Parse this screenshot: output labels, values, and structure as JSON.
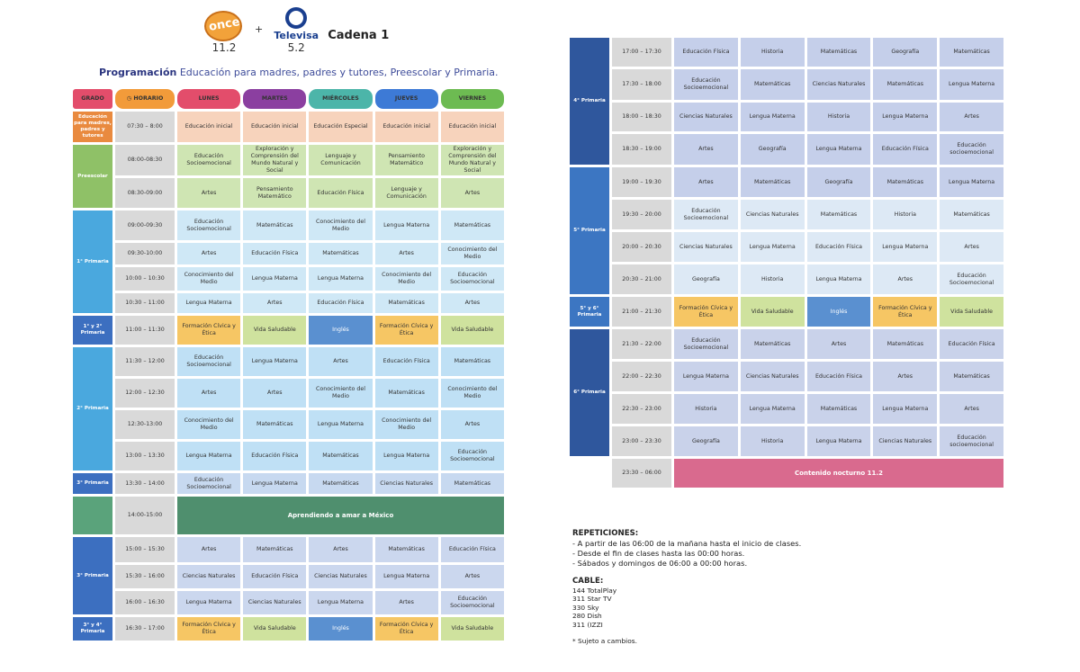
{
  "header": {
    "channel_once_logo": "once",
    "channel_once_number": "11.2",
    "plus": "+",
    "televisa_logo": "Televisa",
    "televisa_number": "5.2",
    "cadena": "Cadena 1",
    "subtitle_bold": "Programación",
    "subtitle_rest": " Educación para madres, padres y tutores, Preescolar y Primaria."
  },
  "colors": {
    "lunes": "#e34d6b",
    "martes": "#8b3fa0",
    "miercoles": "#4cb5a9",
    "jueves": "#3d7ad6",
    "viernes": "#6dbb52",
    "grado": "#e34d6b",
    "horario": "#f29b3a"
  },
  "table_header": {
    "grado": "GRADO",
    "horario": "HORARIO",
    "lunes": "LUNES",
    "martes": "MARTES",
    "miercoles": "MIÉRCOLES",
    "jueves": "JUEVES",
    "viernes": "VIERNES"
  },
  "left_rows": [
    {
      "grade": "Educación para madres, padres y tutores",
      "span": 1,
      "gcolor": "#e98a3f",
      "time": "07:30 – 8:00",
      "cls": "c-inicial",
      "cells": [
        "Educación inicial",
        "Educación inicial",
        "Educación Especial",
        "Educación inicial",
        "Educación inicial"
      ],
      "h": 34
    },
    {
      "grade": "Preescolar",
      "span": 2,
      "gcolor": "#8fc167",
      "time": "08:00-08:30",
      "cls": "c-presc",
      "cells": [
        "Educación Socioemocional",
        "Exploración y Comprensión del Mundo Natural y Social",
        "Lenguaje y Comunicación",
        "Pensamiento Matemático",
        "Exploración y Comprensión del Mundo Natural y Social"
      ],
      "h": 34
    },
    {
      "grade": null,
      "time": "08:30-09:00",
      "cls": "c-presc",
      "cells": [
        "Artes",
        "Pensamiento Matemático",
        "Educación Física",
        "Lenguaje y Comunicación",
        "Artes"
      ],
      "h": 33
    },
    {
      "grade": "1° Primaria",
      "span": 4,
      "gcolor": "#4aa8de",
      "time": "09:00-09:30",
      "cls": "c-1",
      "cells": [
        "Educación Socioemocional",
        "Matemáticas",
        "Conocimiento del Medio",
        "Lengua Materna",
        "Matemáticas"
      ],
      "h": 33
    },
    {
      "grade": null,
      "time": "09:30-10:00",
      "cls": "c-1",
      "cells": [
        "Artes",
        "Educación Física",
        "Matemáticas",
        "Artes",
        "Conocimiento del Medio"
      ],
      "h": 24
    },
    {
      "grade": null,
      "time": "10:00 – 10:30",
      "cls": "c-1",
      "cells": [
        "Conocimiento del Medio",
        "Lengua Materna",
        "Lengua Materna",
        "Conocimiento del Medio",
        "Educación Socioemocional"
      ],
      "h": 26
    },
    {
      "grade": null,
      "time": "10:30 – 11:00",
      "cls": "c-1",
      "cells": [
        "Lengua Materna",
        "Artes",
        "Educación Física",
        "Matemáticas",
        "Artes"
      ],
      "h": 22
    },
    {
      "grade": "1° y 2° Primaria",
      "span": 1,
      "gcolor": "#3c6fc0",
      "time": "11:00 – 11:30",
      "cls": "",
      "cells": [
        "Formación Cívica y Ética",
        "Vida Saludable",
        "Inglés",
        "Formación Cívica y Ética",
        "Vida Saludable"
      ],
      "ccls": [
        "c-fce",
        "c-vs",
        "c-ing",
        "c-fce",
        "c-vs"
      ],
      "h": 32
    },
    {
      "grade": "2° Primaria",
      "span": 4,
      "gcolor": "#4aa8de",
      "time": "11:30 – 12:00",
      "cls": "c-2",
      "cells": [
        "Educación Socioemocional",
        "Lengua Materna",
        "Artes",
        "Educación Física",
        "Matemáticas"
      ],
      "h": 32
    },
    {
      "grade": null,
      "time": "12:00 – 12:30",
      "cls": "c-2",
      "cells": [
        "Artes",
        "Artes",
        "Conocimiento del Medio",
        "Matemáticas",
        "Conocimiento del Medio"
      ],
      "h": 32
    },
    {
      "grade": null,
      "time": "12:30-13:00",
      "cls": "c-2",
      "cells": [
        "Conocimiento del Medio",
        "Matemáticas",
        "Lengua Materna",
        "Conocimiento del Medio",
        "Artes"
      ],
      "h": 32
    },
    {
      "grade": null,
      "time": "13:00 – 13:30",
      "cls": "c-2",
      "cells": [
        "Lengua Materna",
        "Educación Física",
        "Matemáticas",
        "Lengua Materna",
        "Educación Socioemocional"
      ],
      "h": 32
    },
    {
      "grade": "3° Primaria",
      "span": 1,
      "gcolor": "#3c6fc0",
      "time": "13:30 – 14:00",
      "cls": "c-3b",
      "cells": [
        "Educación Socioemocional",
        "Lengua Materna",
        "Matemáticas",
        "Ciencias Naturales",
        "Matemáticas"
      ],
      "h": 23
    },
    {
      "grade": "",
      "span": 1,
      "gcolor": "#5aa37b",
      "time": "14:00-15:00",
      "cls": "",
      "special": "Aprendiendo a amar a México",
      "h": 42
    },
    {
      "grade": "3° Primaria",
      "span": 3,
      "gcolor": "#3c6fc0",
      "time": "15:00 – 15:30",
      "cls": "c-3",
      "cells": [
        "Artes",
        "Matemáticas",
        "Artes",
        "Matemáticas",
        "Educación Física"
      ],
      "h": 28
    },
    {
      "grade": null,
      "time": "15:30 – 16:00",
      "cls": "c-3",
      "cells": [
        "Ciencias Naturales",
        "Educación Física",
        "Ciencias Naturales",
        "Lengua Materna",
        "Artes"
      ],
      "h": 26
    },
    {
      "grade": null,
      "time": "16:00 – 16:30",
      "cls": "c-3",
      "cells": [
        "Lengua Materna",
        "Ciencias Naturales",
        "Lengua Materna",
        "Artes",
        "Educación Socioemocional"
      ],
      "h": 26
    },
    {
      "grade": "3° y 4° Primaria",
      "span": 1,
      "gcolor": "#3c6fc0",
      "time": "16:30 – 17:00",
      "cls": "",
      "cells": [
        "Formación Cívica y Ética",
        "Vida Saludable",
        "Inglés",
        "Formación Cívica y Ética",
        "Vida Saludable"
      ],
      "ccls": [
        "c-fce",
        "c-vs",
        "c-ing",
        "c-fce",
        "c-vs"
      ],
      "h": 26
    }
  ],
  "right_rows": [
    {
      "grade": "4° Primaria",
      "span": 4,
      "gcolor": "#2f579d",
      "time": "17:00 – 17:30",
      "cls": "c-4",
      "cells": [
        "Educación Física",
        "Historia",
        "Matemáticas",
        "Geografía",
        "Matemáticas"
      ],
      "h": 32
    },
    {
      "grade": null,
      "time": "17:30 – 18:00",
      "cls": "c-4",
      "cells": [
        "Educación Socioemocional",
        "Matemáticas",
        "Ciencias Naturales",
        "Matemáticas",
        "Lengua Materna"
      ],
      "h": 34
    },
    {
      "grade": null,
      "time": "18:00 – 18:30",
      "cls": "c-4",
      "cells": [
        "Ciencias Naturales",
        "Lengua Materna",
        "Historia",
        "Lengua Materna",
        "Artes"
      ],
      "h": 32
    },
    {
      "grade": null,
      "time": "18:30 – 19:00",
      "cls": "c-4",
      "cells": [
        "Artes",
        "Geografía",
        "Lengua Materna",
        "Educación Física",
        "Educación socioemocional"
      ],
      "h": 34
    },
    {
      "grade": "5° Primaria",
      "span": 4,
      "gcolor": "#3c76c2",
      "time": "19:00 – 19:30",
      "cls": "c-4",
      "cells": [
        "Artes",
        "Matemáticas",
        "Geografía",
        "Matemáticas",
        "Lengua Materna"
      ],
      "h": 33
    },
    {
      "grade": null,
      "time": "19:30 – 20:00",
      "cls": "c-5",
      "cells": [
        "Educación Socioemocional",
        "Ciencias Naturales",
        "Matemáticas",
        "Historia",
        "Matemáticas"
      ],
      "h": 33
    },
    {
      "grade": null,
      "time": "20:00 – 20:30",
      "cls": "c-5",
      "cells": [
        "Ciencias Naturales",
        "Lengua Materna",
        "Educación Física",
        "Lengua Materna",
        "Artes"
      ],
      "h": 33
    },
    {
      "grade": null,
      "time": "20:30 – 21:00",
      "cls": "c-5",
      "cells": [
        "Geografía",
        "Historia",
        "Lengua Materna",
        "Artes",
        "Educación Socioemocional"
      ],
      "h": 33
    },
    {
      "grade": "5° y 6° Primaria",
      "span": 1,
      "gcolor": "#3c76c2",
      "time": "21:00 – 21:30",
      "cls": "",
      "cells": [
        "Formación Cívica y Ética",
        "Vida Saludable",
        "Inglés",
        "Formación Cívica y Ética",
        "Vida Saludable"
      ],
      "ccls": [
        "c-fce",
        "c-vs",
        "c-ing",
        "c-fce",
        "c-vs"
      ],
      "h": 33
    },
    {
      "grade": "6° Primaria",
      "span": 4,
      "gcolor": "#2f579d",
      "time": "21:30 – 22:00",
      "cls": "c-6",
      "cells": [
        "Educación Socioemocional",
        "Matemáticas",
        "Artes",
        "Matemáticas",
        "Educación Física"
      ],
      "h": 33
    },
    {
      "grade": null,
      "time": "22:00 – 22:30",
      "cls": "c-6",
      "cells": [
        "Lengua Materna",
        "Ciencias Naturales",
        "Educación Física",
        "Artes",
        "Matemáticas"
      ],
      "h": 33
    },
    {
      "grade": null,
      "time": "22:30 – 23:00",
      "cls": "c-6",
      "cells": [
        "Historia",
        "Lengua Materna",
        "Matemáticas",
        "Lengua Materna",
        "Artes"
      ],
      "h": 33
    },
    {
      "grade": null,
      "time": "23:00 – 23:30",
      "cls": "c-6",
      "cells": [
        "Geografía",
        "Historia",
        "Lengua Materna",
        "Ciencias Naturales",
        "Educación socioemocional"
      ],
      "h": 33
    },
    {
      "grade": "",
      "span": 1,
      "gcolor": "#ffffff",
      "time": "23:30 – 06:00",
      "cls": "",
      "special": "Contenido nocturno 11.2",
      "specialColor": "#d96a8e",
      "h": 32
    }
  ],
  "notes": {
    "repeticiones_title": "REPETICIONES:",
    "repeticiones": [
      "- A partir de las 06:00 de la mañana hasta el inicio de clases.",
      "- Desde el fin de clases hasta las 00:00 horas.",
      "- Sábados y domingos de 06:00 a 00:00 horas."
    ],
    "cable_title": "CABLE:",
    "cable": [
      "144 TotalPlay",
      "311 Star TV",
      "330 Sky",
      "280 Dish",
      "311 (IZZI"
    ],
    "footnote": "* Sujeto a cambios."
  }
}
